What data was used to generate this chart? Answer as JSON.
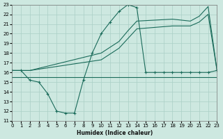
{
  "xlabel": "Humidex (Indice chaleur)",
  "xlim": [
    0,
    23
  ],
  "ylim": [
    11,
    23
  ],
  "xticks": [
    0,
    1,
    2,
    3,
    4,
    5,
    6,
    7,
    8,
    9,
    10,
    11,
    12,
    13,
    14,
    15,
    16,
    17,
    18,
    19,
    20,
    21,
    22,
    23
  ],
  "yticks": [
    11,
    12,
    13,
    14,
    15,
    16,
    17,
    18,
    19,
    20,
    21,
    22,
    23
  ],
  "bg_color": "#cde8e0",
  "grid_color": "#aacfc6",
  "line_color": "#1a6b5a",
  "s1_x": [
    0,
    1,
    2,
    3,
    4,
    5,
    6,
    7,
    8,
    9,
    10,
    11,
    12,
    13,
    14,
    15,
    16,
    17,
    18,
    19,
    20,
    21,
    22,
    23
  ],
  "s1_y": [
    16.2,
    16.2,
    15.2,
    15.0,
    13.8,
    12.0,
    11.8,
    11.8,
    15.2,
    18.0,
    20.0,
    21.2,
    22.3,
    23.0,
    22.7,
    16.0,
    16.0,
    16.0,
    16.0,
    16.0,
    16.0,
    16.0,
    16.0,
    16.2
  ],
  "s2_x": [
    0,
    2,
    10,
    12,
    13,
    14,
    18,
    20,
    21,
    22,
    23
  ],
  "s2_y": [
    16.2,
    16.2,
    18.0,
    19.2,
    20.3,
    21.3,
    21.5,
    21.3,
    21.8,
    22.8,
    16.2
  ],
  "s3_x": [
    0,
    2,
    10,
    12,
    13,
    14,
    18,
    20,
    21,
    22,
    23
  ],
  "s3_y": [
    16.2,
    16.2,
    17.3,
    18.5,
    19.5,
    20.5,
    20.8,
    20.8,
    21.2,
    22.0,
    16.2
  ],
  "s4_x": [
    0,
    2,
    3,
    9,
    10,
    11,
    12,
    13,
    14,
    15,
    16,
    17,
    18,
    19,
    20,
    21,
    22,
    23
  ],
  "s4_y": [
    15.5,
    15.5,
    15.5,
    15.5,
    15.5,
    15.5,
    15.5,
    15.5,
    15.5,
    15.5,
    15.5,
    15.5,
    15.5,
    15.5,
    15.5,
    15.5,
    15.5,
    15.5
  ]
}
